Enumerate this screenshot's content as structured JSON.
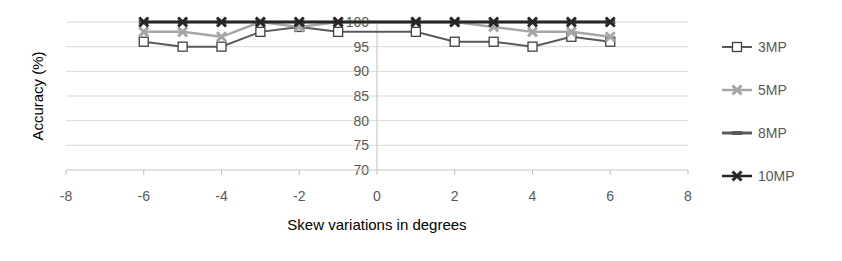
{
  "chart_data": {
    "type": "line",
    "x_label": "Skew variations in degrees",
    "y_label": "Accuracy (%)",
    "x": [
      -6,
      -5,
      -4,
      -3,
      -2,
      -1,
      1,
      2,
      3,
      4,
      5,
      6
    ],
    "series": [
      {
        "name": "3MP",
        "color": "#595959",
        "marker": "square",
        "line_style": "solid",
        "values": [
          96,
          95,
          95,
          98,
          99,
          98,
          98,
          96,
          96,
          95,
          97,
          96
        ]
      },
      {
        "name": "5MP",
        "color": "#a6a6a6",
        "marker": "x",
        "line_style": "solid",
        "values": [
          98,
          98,
          97,
          100,
          99,
          100,
          100,
          100,
          99,
          98,
          98,
          97
        ]
      },
      {
        "name": "8MP",
        "color": "#595959",
        "marker": "dash",
        "line_style": "solid",
        "values": [
          100,
          100,
          100,
          100,
          100,
          100,
          100,
          100,
          100,
          100,
          100,
          100
        ]
      },
      {
        "name": "10MP",
        "color": "#262626",
        "marker": "x",
        "line_style": "solid",
        "values": [
          100,
          100,
          100,
          100,
          100,
          100,
          100,
          100,
          100,
          100,
          100,
          100
        ]
      }
    ],
    "xlim": [
      -8,
      8
    ],
    "xticks": [
      -8,
      -6,
      -4,
      -2,
      0,
      2,
      4,
      6,
      8
    ],
    "ylim": [
      70,
      100
    ],
    "yticks": [
      70,
      75,
      80,
      85,
      90,
      95,
      100
    ],
    "grid": true,
    "legend": "right"
  }
}
